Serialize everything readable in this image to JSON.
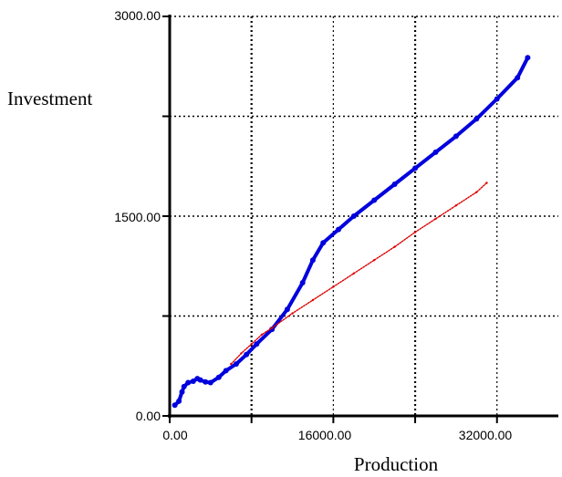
{
  "chart_data": {
    "type": "scatter",
    "title": "",
    "xlabel": "Production",
    "ylabel": "Investment",
    "xlim": [
      0,
      38000
    ],
    "ylim": [
      0,
      3000
    ],
    "x_tick_labels": [
      "0.00",
      "16000.00",
      "32000.00"
    ],
    "y_tick_labels": [
      "0.00",
      "1500.00",
      "3000.00"
    ],
    "grid": "dotted",
    "series": [
      {
        "color": "#0000dd",
        "style": "thick-points",
        "x": [
          500,
          900,
          1200,
          1400,
          1800,
          2300,
          2700,
          3000,
          3500,
          4000,
          4800,
          5500,
          6500,
          7500,
          8500,
          10000,
          11500,
          13000,
          14000,
          15000,
          16500,
          18000,
          20000,
          22000,
          24000,
          26000,
          28000,
          30000,
          32000,
          34000,
          35000
        ],
        "y": [
          80,
          110,
          180,
          220,
          250,
          260,
          280,
          270,
          255,
          250,
          290,
          340,
          390,
          460,
          540,
          650,
          800,
          1000,
          1170,
          1300,
          1400,
          1500,
          1620,
          1740,
          1860,
          1980,
          2100,
          2230,
          2380,
          2540,
          2690
        ]
      },
      {
        "color": "#dd0000",
        "style": "thin-points",
        "x": [
          6000,
          7000,
          8000,
          9000,
          10000,
          12000,
          14000,
          16000,
          18000,
          20000,
          22000,
          24000,
          26000,
          28000,
          30000,
          31000
        ],
        "y": [
          390,
          470,
          540,
          610,
          660,
          770,
          870,
          970,
          1070,
          1170,
          1270,
          1380,
          1480,
          1580,
          1680,
          1750
        ]
      }
    ]
  }
}
